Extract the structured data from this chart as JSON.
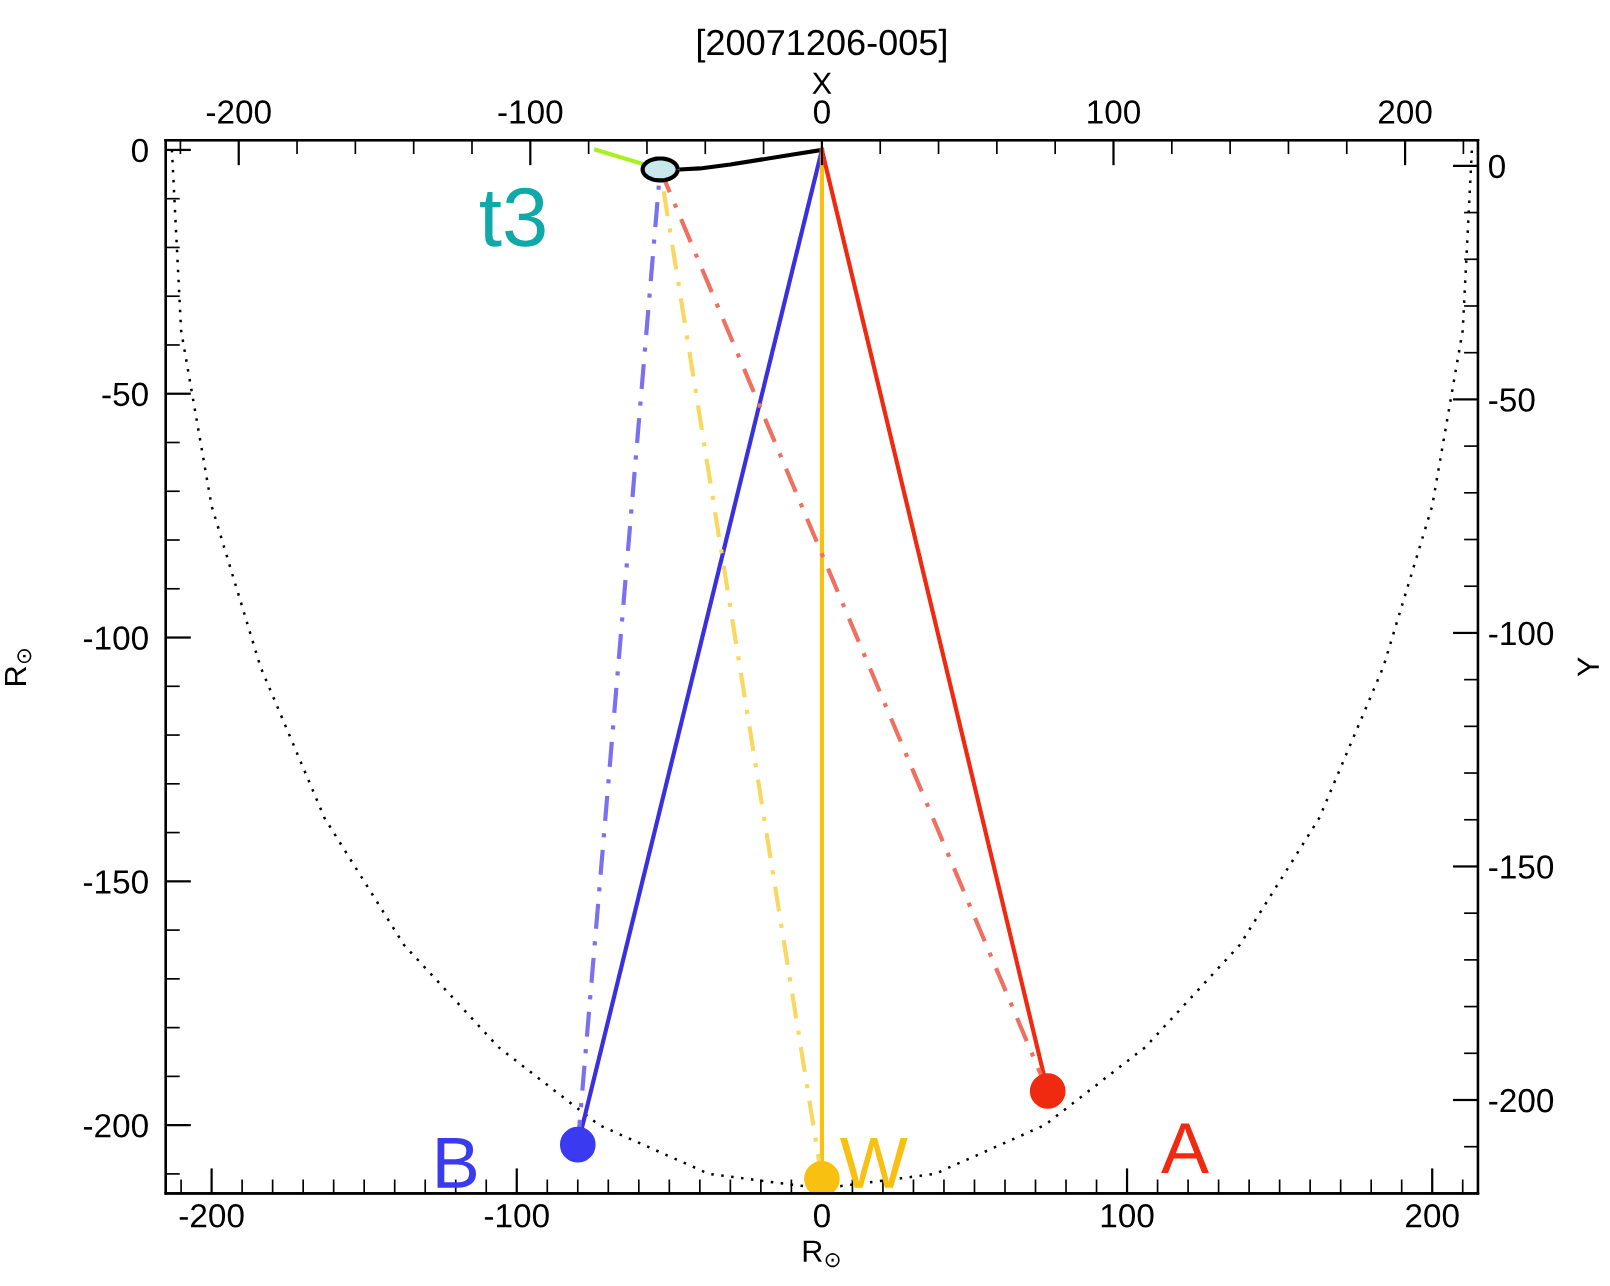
{
  "chart_data": {
    "type": "line",
    "title": "[20071206-005]",
    "xlabel": "R$_{⊙}$",
    "ylabel": "R$_{⊙}$",
    "x2label": "X",
    "y2label": "Y",
    "xlim": [
      -215,
      215
    ],
    "ylim": [
      -214,
      2
    ],
    "x2lim": [
      -225,
      225
    ],
    "y2lim": [
      -220,
      5.5
    ],
    "xticks": [
      {
        "value": -210,
        "label": null
      },
      -200,
      {
        "value": -190,
        "label": null
      },
      {
        "value": -180,
        "label": null
      },
      {
        "value": -170,
        "label": null
      },
      {
        "value": -160,
        "label": null
      },
      {
        "value": -150,
        "label": null
      },
      {
        "value": -140,
        "label": null
      },
      {
        "value": -130,
        "label": null
      },
      {
        "value": -120,
        "label": null
      },
      {
        "value": -110,
        "label": null
      },
      -100,
      {
        "value": -90,
        "label": null
      },
      {
        "value": -80,
        "label": null
      },
      {
        "value": -70,
        "label": null
      },
      {
        "value": -60,
        "label": null
      },
      {
        "value": -50,
        "label": null
      },
      {
        "value": -40,
        "label": null
      },
      {
        "value": -30,
        "label": null
      },
      {
        "value": -20,
        "label": null
      },
      {
        "value": -10,
        "label": null
      },
      0,
      {
        "value": 10,
        "label": null
      },
      {
        "value": 20,
        "label": null
      },
      {
        "value": 30,
        "label": null
      },
      {
        "value": 40,
        "label": null
      },
      {
        "value": 50,
        "label": null
      },
      {
        "value": 60,
        "label": null
      },
      {
        "value": 70,
        "label": null
      },
      {
        "value": 80,
        "label": null
      },
      {
        "value": 90,
        "label": null
      },
      100,
      {
        "value": 110,
        "label": null
      },
      {
        "value": 120,
        "label": null
      },
      {
        "value": 130,
        "label": null
      },
      {
        "value": 140,
        "label": null
      },
      {
        "value": 150,
        "label": null
      },
      {
        "value": 160,
        "label": null
      },
      {
        "value": 170,
        "label": null
      },
      {
        "value": 180,
        "label": null
      },
      {
        "value": 190,
        "label": null
      },
      200,
      {
        "value": 210,
        "label": null
      }
    ],
    "x2ticks": [
      {
        "value": -220,
        "label": null
      },
      -200,
      {
        "value": -180,
        "label": null
      },
      {
        "value": -160,
        "label": null
      },
      {
        "value": -140,
        "label": null
      },
      {
        "value": -120,
        "label": null
      },
      -100,
      {
        "value": -80,
        "label": null
      },
      {
        "value": -60,
        "label": null
      },
      {
        "value": -40,
        "label": null
      },
      {
        "value": -20,
        "label": null
      },
      0,
      {
        "value": 20,
        "label": null
      },
      {
        "value": 40,
        "label": null
      },
      {
        "value": 60,
        "label": null
      },
      {
        "value": 80,
        "label": null
      },
      100,
      {
        "value": 120,
        "label": null
      },
      {
        "value": 140,
        "label": null
      },
      {
        "value": 160,
        "label": null
      },
      {
        "value": 180,
        "label": null
      },
      200,
      {
        "value": 220,
        "label": null
      }
    ],
    "yticks": [
      0,
      {
        "value": -10,
        "label": null
      },
      {
        "value": -20,
        "label": null
      },
      {
        "value": -30,
        "label": null
      },
      {
        "value": -40,
        "label": null
      },
      -50,
      {
        "value": -60,
        "label": null
      },
      {
        "value": -70,
        "label": null
      },
      {
        "value": -80,
        "label": null
      },
      {
        "value": -90,
        "label": null
      },
      -100,
      {
        "value": -110,
        "label": null
      },
      {
        "value": -120,
        "label": null
      },
      {
        "value": -130,
        "label": null
      },
      {
        "value": -140,
        "label": null
      },
      -150,
      {
        "value": -160,
        "label": null
      },
      {
        "value": -170,
        "label": null
      },
      {
        "value": -180,
        "label": null
      },
      {
        "value": -190,
        "label": null
      },
      -200,
      {
        "value": -210,
        "label": null
      }
    ],
    "y2ticks": [
      0,
      {
        "value": -10,
        "label": null
      },
      {
        "value": -20,
        "label": null
      },
      {
        "value": -30,
        "label": null
      },
      {
        "value": -40,
        "label": null
      },
      -50,
      {
        "value": -60,
        "label": null
      },
      {
        "value": -70,
        "label": null
      },
      {
        "value": -80,
        "label": null
      },
      {
        "value": -90,
        "label": null
      },
      -100,
      {
        "value": -110,
        "label": null
      },
      {
        "value": -120,
        "label": null
      },
      {
        "value": -130,
        "label": null
      },
      {
        "value": -140,
        "label": null
      },
      -150,
      {
        "value": -160,
        "label": null
      },
      {
        "value": -170,
        "label": null
      },
      {
        "value": -180,
        "label": null
      },
      {
        "value": -190,
        "label": null
      },
      -200,
      {
        "value": -210,
        "label": null
      }
    ],
    "grid": false,
    "legend": false,
    "annotations": [
      "t3"
    ],
    "series": [
      {
        "color": "#000000",
        "line_style": "dotted",
        "marker": "none",
        "x": [
          -213,
          -210,
          -200,
          -184,
          -163,
          -137,
          -106,
          -73,
          -37,
          0,
          37,
          73,
          106,
          137,
          163,
          184,
          200,
          210,
          213
        ],
        "values": [
          0,
          -37,
          -73,
          -106,
          -137,
          -163,
          -184,
          -200,
          -210,
          -213,
          -210,
          -200,
          -184,
          -163,
          -137,
          -106,
          -73,
          -37,
          0
        ]
      },
      {
        "color": "#000000",
        "line_style": "solid",
        "marker": "none",
        "x": [
          0,
          -10,
          -20,
          -30,
          -40,
          -46
        ],
        "values": [
          0,
          -1,
          -2,
          -3,
          -3.8,
          -4
        ]
      },
      {
        "color": "#a8f020",
        "line_style": "solid",
        "marker": "none",
        "x": [
          -58,
          -74
        ],
        "values": [
          -3,
          0
        ]
      },
      {
        "color": "#3a30e0",
        "line_style": "solid",
        "marker": "none",
        "x": [
          -80,
          0
        ],
        "values": [
          -204,
          0
        ]
      },
      {
        "color": "#f8c010",
        "line_style": "solid",
        "marker": "none",
        "x": [
          0,
          0
        ],
        "values": [
          -211,
          0
        ]
      },
      {
        "color": "#f02a10",
        "line_style": "solid",
        "marker": "none",
        "x": [
          74,
          0
        ],
        "values": [
          -193,
          0
        ]
      },
      {
        "color": "#7a70f0",
        "line_style": "dashed",
        "marker": "none",
        "x": [
          -80,
          -53
        ],
        "values": [
          -204,
          -4
        ]
      },
      {
        "color": "#f8d860",
        "line_style": "dashed",
        "marker": "none",
        "x": [
          0,
          -53
        ],
        "values": [
          -211,
          -4
        ]
      },
      {
        "color": "#f07060",
        "line_style": "dashed",
        "marker": "none",
        "x": [
          74,
          -53
        ],
        "values": [
          -193,
          -4
        ]
      },
      {
        "type": "scatter",
        "color": "#c8e8ec",
        "marker": "circle",
        "x": [
          -53
        ],
        "values": [
          -4
        ]
      },
      {
        "type": "scatter",
        "name": "B",
        "color": "#3a3af0",
        "marker": "circle",
        "x": [
          -80
        ],
        "values": [
          -204
        ]
      },
      {
        "type": "scatter",
        "name": "W",
        "color": "#f8c010",
        "marker": "circle",
        "x": [
          0
        ],
        "values": [
          -211
        ]
      },
      {
        "type": "scatter",
        "name": "A",
        "color": "#f02a10",
        "marker": "circle",
        "x": [
          74
        ],
        "values": [
          -193
        ]
      }
    ]
  }
}
